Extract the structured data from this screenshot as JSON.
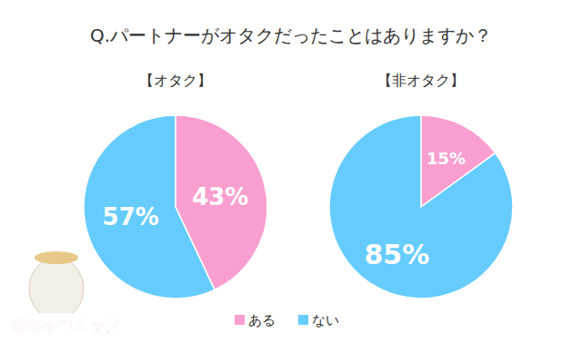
{
  "title": "Q.パートナーがオタクだったことはありますか？",
  "logo": "めちゃコミック",
  "chart_data": [
    {
      "type": "pie",
      "title": "【オタク】",
      "categories": [
        "ある",
        "ない"
      ],
      "values": [
        43,
        57
      ],
      "value_labels": [
        "43%",
        "57%"
      ],
      "colors": [
        "#f99fcf",
        "#66ccff"
      ],
      "data_labels": true,
      "legend": "bottom"
    },
    {
      "type": "pie",
      "title": "【非オタク】",
      "categories": [
        "ある",
        "ない"
      ],
      "values": [
        15,
        85
      ],
      "value_labels": [
        "15%",
        "85%"
      ],
      "colors": [
        "#f99fcf",
        "#66ccff"
      ],
      "data_labels": true,
      "legend": "bottom"
    }
  ]
}
